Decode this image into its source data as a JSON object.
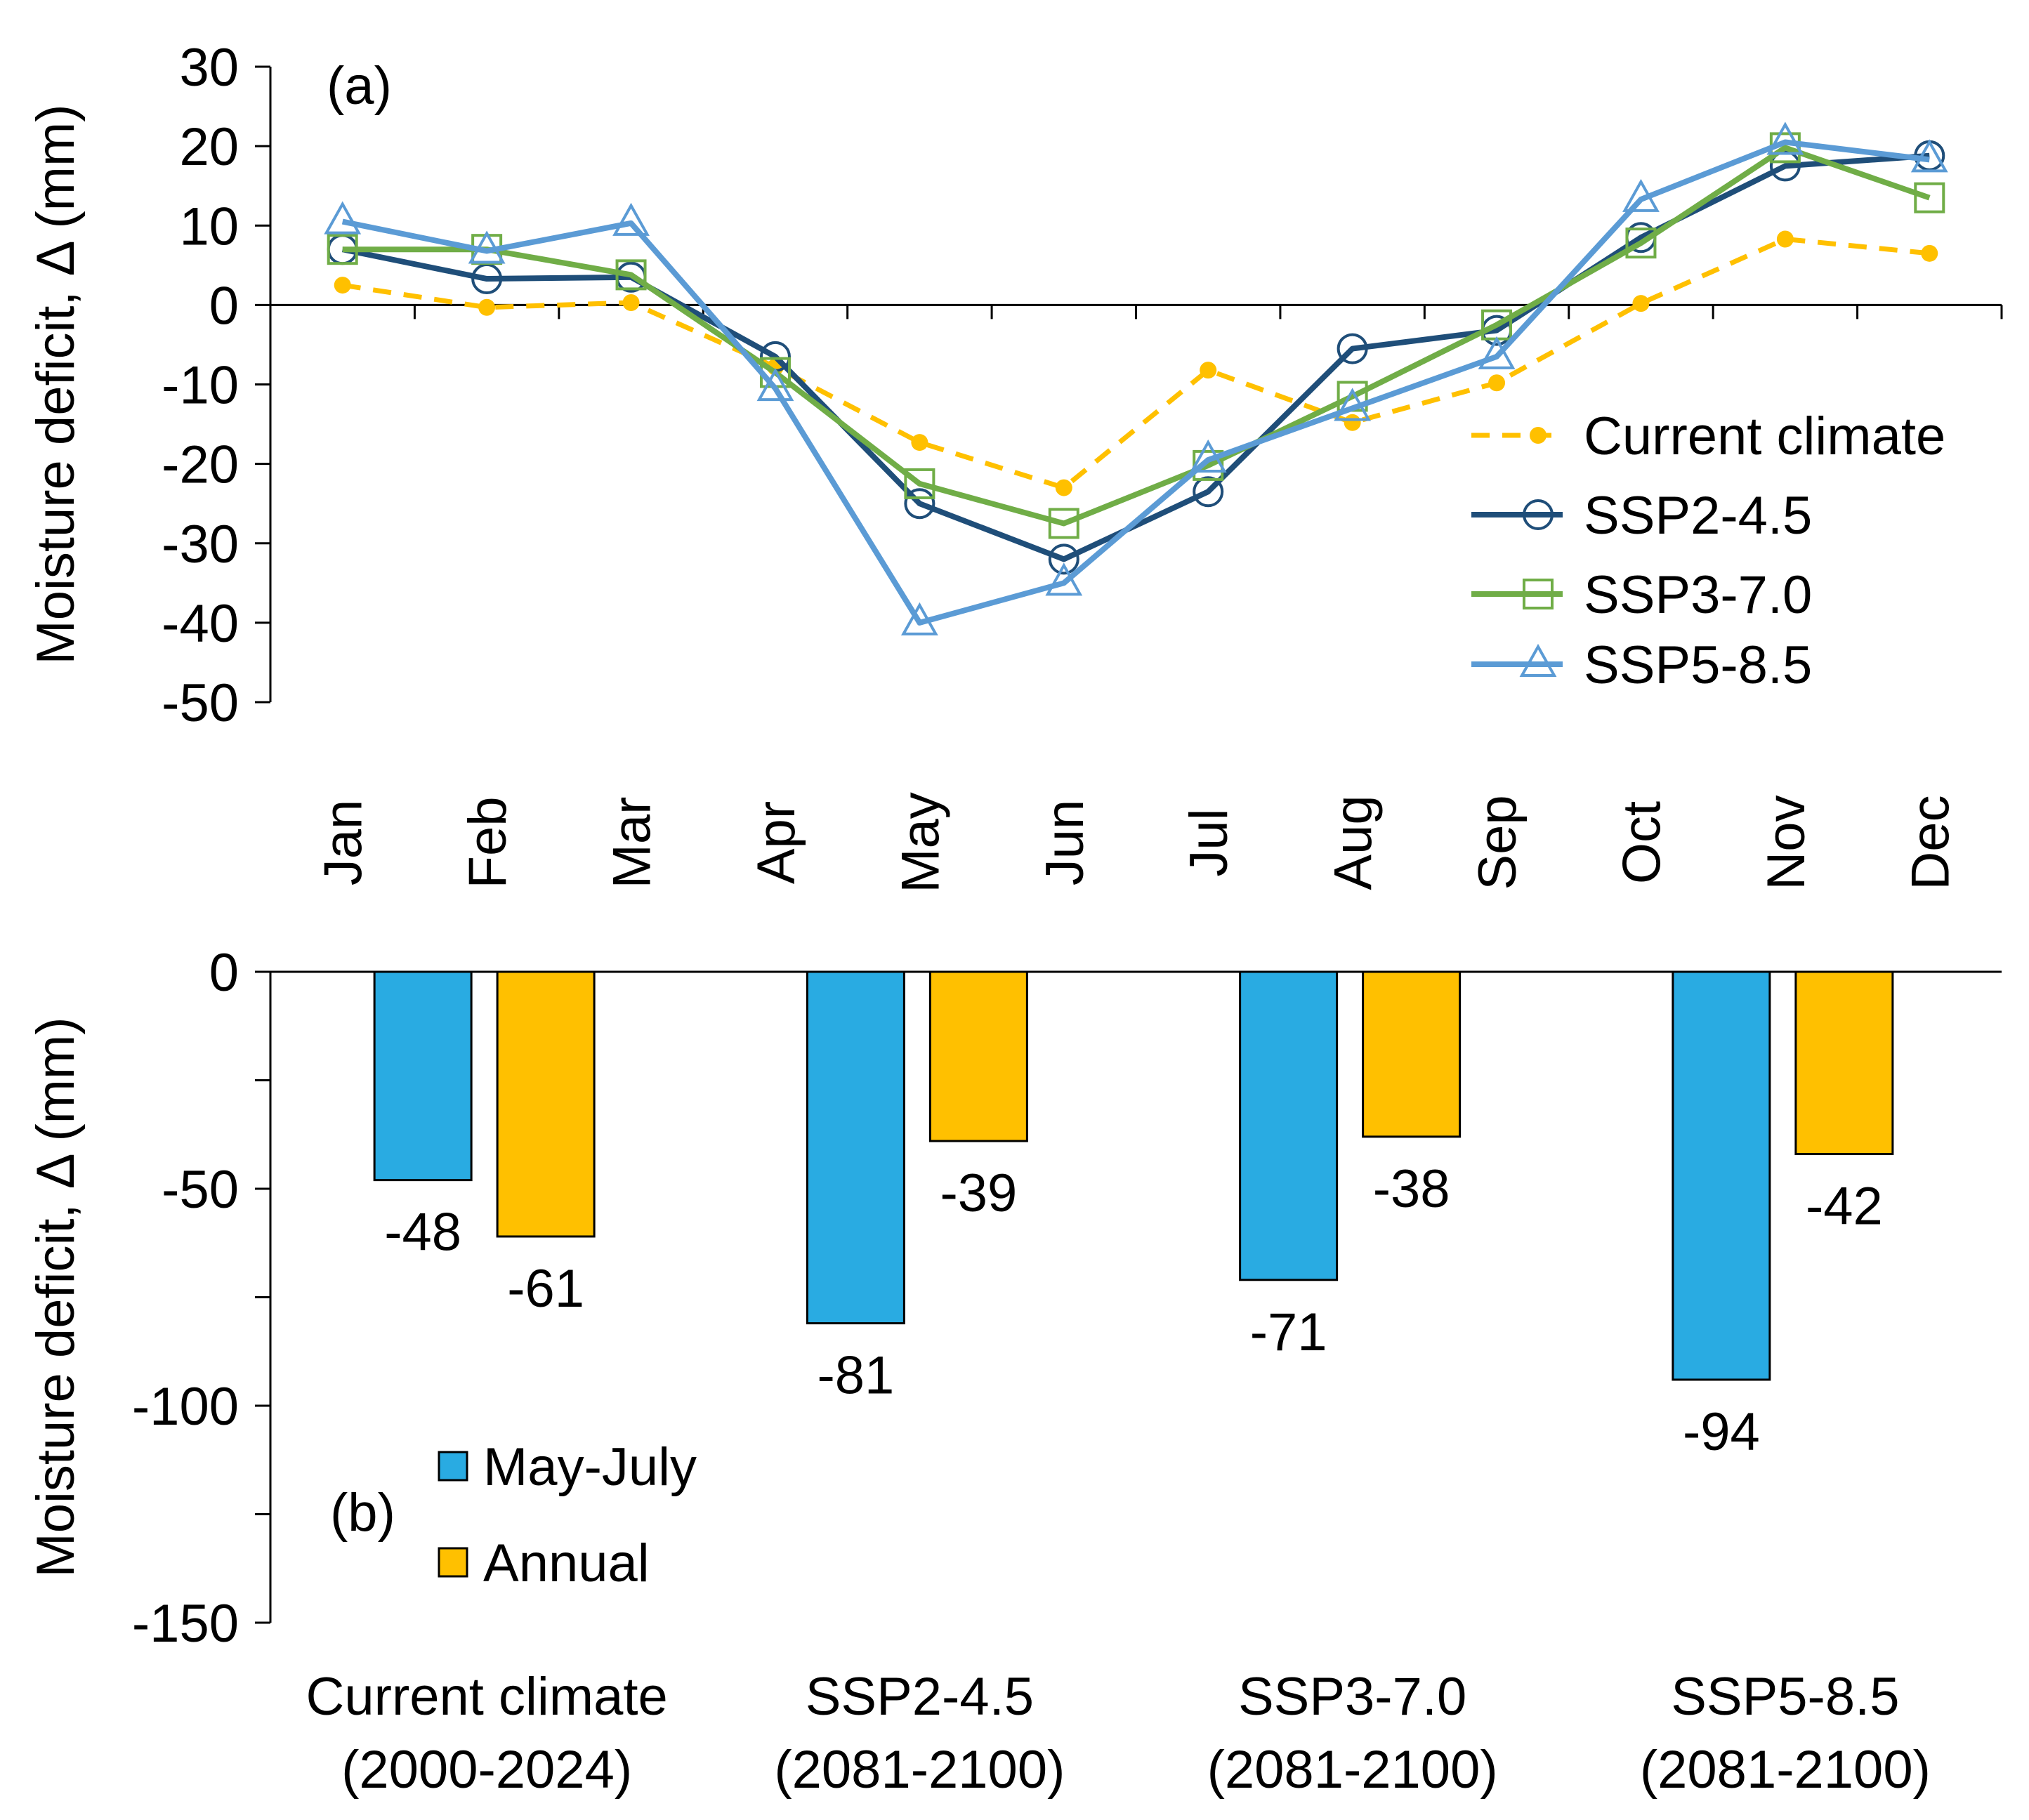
{
  "chart_data": [
    {
      "type": "line",
      "panel_label": "(a)",
      "ylabel": "Moisture deficit, Δ (mm)",
      "ylim": [
        -50,
        30
      ],
      "yticks": [
        "30",
        "20",
        "10",
        "0",
        "-10",
        "-20",
        "-30",
        "-40",
        "-50"
      ],
      "ytick_values": [
        30,
        20,
        10,
        0,
        -10,
        -20,
        -30,
        -40,
        -50
      ],
      "categories": [
        "Jan",
        "Feb",
        "Mar",
        "Apr",
        "May",
        "Jun",
        "Jul",
        "Aug",
        "Sep",
        "Oct",
        "Nov",
        "Dec"
      ],
      "legend_position": "right",
      "series": [
        {
          "name": "Current climate",
          "color": "#FFC000",
          "marker": "dot",
          "dashed": true,
          "values": [
            2.5,
            -0.3,
            0.3,
            -7.8,
            -17.3,
            -23,
            -8.2,
            -14.8,
            -9.8,
            0.2,
            8.3,
            6.5
          ]
        },
        {
          "name": "SSP2-4.5",
          "color": "#1F4E79",
          "marker": "circle",
          "dashed": false,
          "values": [
            7,
            3.3,
            3.5,
            -6.5,
            -25,
            -32,
            -23.5,
            -5.5,
            -3.2,
            8.5,
            17.5,
            18.8
          ]
        },
        {
          "name": "SSP3-7.0",
          "color": "#70AD47",
          "marker": "square",
          "dashed": false,
          "values": [
            7,
            7,
            3.8,
            -8.5,
            -22.5,
            -27.5,
            -20.2,
            -11.5,
            -2.5,
            7.8,
            19.8,
            13.5
          ]
        },
        {
          "name": "SSP5-8.5",
          "color": "#5B9BD5",
          "marker": "triangle",
          "dashed": false,
          "values": [
            10.5,
            6.8,
            10.3,
            -10.5,
            -40,
            -35,
            -19.5,
            -13,
            -6.5,
            13.3,
            20.5,
            18.3
          ]
        }
      ]
    },
    {
      "type": "bar",
      "panel_label": "(b)",
      "ylabel": "Moisture deficit, Δ (mm)",
      "ylim": [
        -150,
        0
      ],
      "yticks": [
        "0",
        "-50",
        "-100",
        "-150"
      ],
      "ytick_values": [
        0,
        -50,
        -100,
        -150
      ],
      "categories": [
        [
          "Current climate",
          "(2000-2024)"
        ],
        [
          "SSP2-4.5",
          "(2081-2100)"
        ],
        [
          "SSP3-7.0",
          "(2081-2100)"
        ],
        [
          "SSP5-8.5",
          "(2081-2100)"
        ]
      ],
      "legend_position": "bottom-left",
      "series": [
        {
          "name": "May-July",
          "color": "#29ABE2",
          "values": [
            -48,
            -81,
            -71,
            -94
          ],
          "labels": [
            "-48",
            "-81",
            "-71",
            "-94"
          ]
        },
        {
          "name": "Annual",
          "color": "#FFC000",
          "values": [
            -61,
            -39,
            -38,
            -42
          ],
          "labels": [
            "-61",
            "-39",
            "-38",
            "-42"
          ]
        }
      ]
    }
  ]
}
